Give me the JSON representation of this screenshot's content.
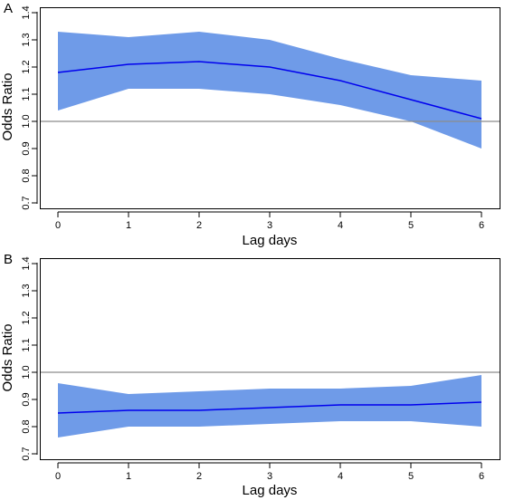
{
  "chart_data": [
    {
      "type": "line",
      "panel_label": "A",
      "xlabel": "Lag days",
      "ylabel": "Odds Ratio",
      "x": [
        0,
        1,
        2,
        3,
        4,
        5,
        6
      ],
      "xlim": [
        0,
        6
      ],
      "ylim": [
        0.7,
        1.4
      ],
      "xticks": [
        "0",
        "1",
        "2",
        "3",
        "4",
        "5",
        "6"
      ],
      "yticks": [
        "0.7",
        "0.8",
        "0.9",
        "1.0",
        "1.1",
        "1.2",
        "1.3",
        "1.4"
      ],
      "reference_line": 1.0,
      "series": [
        {
          "estimate": [
            1.18,
            1.21,
            1.22,
            1.2,
            1.15,
            1.08,
            1.01
          ],
          "lower": [
            1.04,
            1.12,
            1.12,
            1.1,
            1.06,
            1.0,
            0.9
          ],
          "upper": [
            1.33,
            1.31,
            1.33,
            1.3,
            1.23,
            1.17,
            1.15
          ],
          "line_color": "#0000ee",
          "band_color": "#6f9be8"
        }
      ]
    },
    {
      "type": "line",
      "panel_label": "B",
      "xlabel": "Lag days",
      "ylabel": "Odds Ratio",
      "x": [
        0,
        1,
        2,
        3,
        4,
        5,
        6
      ],
      "xlim": [
        0,
        6
      ],
      "ylim": [
        0.7,
        1.4
      ],
      "xticks": [
        "0",
        "1",
        "2",
        "3",
        "4",
        "5",
        "6"
      ],
      "yticks": [
        "0.7",
        "0.8",
        "0.9",
        "1.0",
        "1.1",
        "1.2",
        "1.3",
        "1.4"
      ],
      "reference_line": 1.0,
      "series": [
        {
          "estimate": [
            0.85,
            0.86,
            0.86,
            0.87,
            0.88,
            0.88,
            0.89
          ],
          "lower": [
            0.76,
            0.8,
            0.8,
            0.81,
            0.82,
            0.82,
            0.8
          ],
          "upper": [
            0.96,
            0.92,
            0.93,
            0.94,
            0.94,
            0.95,
            0.99
          ],
          "line_color": "#0000ee",
          "band_color": "#6f9be8"
        }
      ]
    }
  ]
}
